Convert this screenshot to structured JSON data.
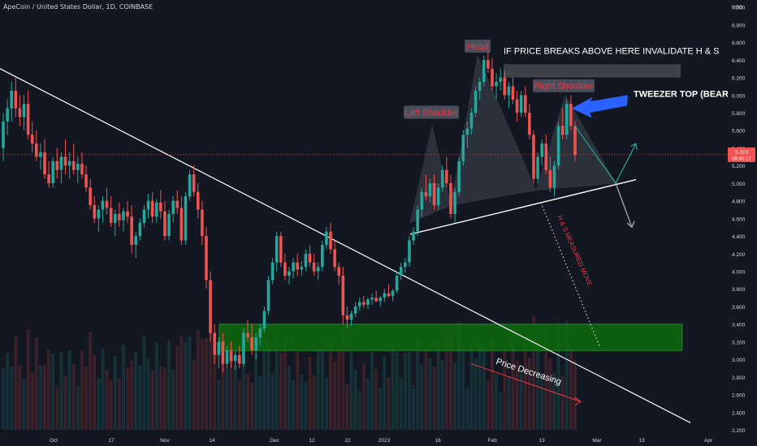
{
  "header": {
    "symbol_line": "ApeCoin / United States Dollar, 1D, COINBASE"
  },
  "colors": {
    "bg": "#131722",
    "up": "#26a69a",
    "down": "#ef5350",
    "text": "#d1d4dc",
    "red_label": "#f23645",
    "green_zone": "#0e6b0e",
    "blue_arrow": "#2962ff",
    "trend": "#ffffff"
  },
  "chart_data": {
    "type": "candlestick",
    "title": "ApeCoin / United States Dollar, 1D, COINBASE",
    "price_axis": {
      "currency": "USD",
      "min": 2.2,
      "max": 7.0,
      "ticks": [
        "7.000",
        "6.800",
        "6.600",
        "6.400",
        "6.200",
        "6.000",
        "5.800",
        "5.600",
        "5.400",
        "5.200",
        "5.000",
        "4.800",
        "4.600",
        "4.400",
        "4.200",
        "4.000",
        "3.800",
        "3.600",
        "3.400",
        "3.200",
        "3.000",
        "2.800",
        "2.600",
        "2.400",
        "2.200"
      ],
      "last_price": "5.323",
      "countdown": "08:40:17"
    },
    "time_axis": {
      "labels": [
        "Oct",
        "17",
        "Nov",
        "14",
        "Dec",
        "12",
        "22",
        "2023",
        "16",
        "Feb",
        "13",
        "Mar",
        "13",
        "Apr"
      ]
    },
    "candles_ohlc": [
      [
        5.4,
        5.8,
        5.25,
        5.7
      ],
      [
        5.7,
        5.95,
        5.55,
        5.85
      ],
      [
        5.85,
        6.15,
        5.7,
        6.05
      ],
      [
        6.05,
        6.2,
        5.75,
        5.85
      ],
      [
        5.85,
        6.0,
        5.65,
        5.75
      ],
      [
        5.75,
        6.0,
        5.6,
        5.9
      ],
      [
        5.9,
        6.05,
        5.5,
        5.55
      ],
      [
        5.55,
        5.7,
        5.35,
        5.45
      ],
      [
        5.45,
        5.6,
        5.25,
        5.3
      ],
      [
        5.3,
        5.45,
        5.15,
        5.35
      ],
      [
        5.35,
        5.5,
        5.05,
        5.1
      ],
      [
        5.1,
        5.25,
        4.95,
        5.0
      ],
      [
        5.0,
        5.3,
        4.95,
        5.25
      ],
      [
        5.25,
        5.4,
        5.05,
        5.15
      ],
      [
        5.15,
        5.35,
        5.0,
        5.3
      ],
      [
        5.3,
        5.5,
        5.1,
        5.2
      ],
      [
        5.2,
        5.35,
        5.05,
        5.25
      ],
      [
        5.25,
        5.45,
        5.1,
        5.15
      ],
      [
        5.15,
        5.3,
        5.0,
        5.22
      ],
      [
        5.22,
        5.35,
        5.05,
        5.1
      ],
      [
        5.1,
        5.2,
        4.9,
        4.95
      ],
      [
        4.95,
        5.05,
        4.7,
        4.75
      ],
      [
        4.75,
        4.85,
        4.55,
        4.6
      ],
      [
        4.6,
        4.75,
        4.45,
        4.7
      ],
      [
        4.7,
        4.85,
        4.55,
        4.8
      ],
      [
        4.8,
        4.95,
        4.65,
        4.72
      ],
      [
        4.72,
        4.85,
        4.5,
        4.55
      ],
      [
        4.55,
        4.7,
        4.4,
        4.65
      ],
      [
        4.65,
        4.78,
        4.5,
        4.58
      ],
      [
        4.58,
        4.72,
        4.45,
        4.68
      ],
      [
        4.68,
        4.8,
        4.55,
        4.62
      ],
      [
        4.62,
        4.75,
        4.2,
        4.3
      ],
      [
        4.3,
        4.45,
        4.15,
        4.4
      ],
      [
        4.4,
        4.6,
        4.35,
        4.55
      ],
      [
        4.55,
        4.75,
        4.5,
        4.7
      ],
      [
        4.7,
        4.88,
        4.6,
        4.8
      ],
      [
        4.8,
        4.9,
        4.55,
        4.62
      ],
      [
        4.62,
        4.82,
        4.55,
        4.78
      ],
      [
        4.78,
        4.92,
        4.6,
        4.68
      ],
      [
        4.68,
        4.8,
        4.35,
        4.4
      ],
      [
        4.4,
        4.7,
        4.35,
        4.65
      ],
      [
        4.65,
        4.85,
        4.55,
        4.8
      ],
      [
        4.8,
        4.92,
        4.65,
        4.72
      ],
      [
        4.72,
        4.85,
        4.3,
        4.35
      ],
      [
        4.35,
        4.9,
        4.3,
        4.85
      ],
      [
        4.85,
        5.15,
        4.8,
        5.1
      ],
      [
        5.1,
        5.2,
        4.85,
        4.9
      ],
      [
        4.9,
        5.0,
        4.6,
        4.7
      ],
      [
        4.7,
        4.8,
        4.3,
        4.4
      ],
      [
        4.4,
        4.5,
        3.8,
        3.9
      ],
      [
        3.9,
        4.0,
        3.2,
        3.3
      ],
      [
        3.3,
        3.4,
        2.95,
        3.05
      ],
      [
        3.05,
        3.25,
        2.9,
        3.2
      ],
      [
        3.2,
        3.3,
        2.85,
        2.95
      ],
      [
        2.95,
        3.15,
        2.9,
        3.1
      ],
      [
        3.1,
        3.2,
        2.9,
        2.98
      ],
      [
        2.98,
        3.1,
        2.88,
        3.05
      ],
      [
        3.05,
        3.15,
        2.9,
        2.95
      ],
      [
        2.95,
        3.35,
        2.92,
        3.3
      ],
      [
        3.3,
        3.45,
        3.2,
        3.25
      ],
      [
        3.25,
        3.4,
        3.05,
        3.1
      ],
      [
        3.1,
        3.3,
        3.0,
        3.25
      ],
      [
        3.25,
        3.4,
        3.15,
        3.35
      ],
      [
        3.35,
        3.6,
        3.3,
        3.55
      ],
      [
        3.55,
        3.95,
        3.5,
        3.9
      ],
      [
        3.9,
        4.15,
        3.85,
        4.1
      ],
      [
        4.1,
        4.45,
        4.0,
        4.4
      ],
      [
        4.4,
        4.45,
        4.05,
        4.1
      ],
      [
        4.1,
        4.2,
        3.9,
        3.95
      ],
      [
        3.95,
        4.05,
        3.85,
        4.0
      ],
      [
        4.0,
        4.15,
        3.92,
        4.1
      ],
      [
        4.1,
        4.2,
        3.95,
        4.02
      ],
      [
        4.02,
        4.12,
        3.95,
        4.05
      ],
      [
        4.05,
        4.25,
        4.0,
        4.2
      ],
      [
        4.2,
        4.3,
        4.05,
        4.1
      ],
      [
        4.1,
        4.2,
        3.95,
        4.0
      ],
      [
        4.0,
        4.1,
        3.9,
        4.05
      ],
      [
        4.05,
        4.35,
        4.0,
        4.3
      ],
      [
        4.3,
        4.5,
        4.25,
        4.45
      ],
      [
        4.45,
        4.55,
        4.2,
        4.25
      ],
      [
        4.25,
        4.35,
        4.0,
        4.05
      ],
      [
        4.05,
        4.1,
        3.85,
        3.95
      ],
      [
        3.95,
        4.05,
        3.4,
        3.5
      ],
      [
        3.5,
        3.6,
        3.35,
        3.45
      ],
      [
        3.45,
        3.55,
        3.38,
        3.52
      ],
      [
        3.52,
        3.65,
        3.48,
        3.6
      ],
      [
        3.6,
        3.7,
        3.55,
        3.65
      ],
      [
        3.65,
        3.72,
        3.58,
        3.62
      ],
      [
        3.62,
        3.7,
        3.57,
        3.68
      ],
      [
        3.68,
        3.75,
        3.62,
        3.7
      ],
      [
        3.7,
        3.78,
        3.65,
        3.66
      ],
      [
        3.66,
        3.72,
        3.6,
        3.7
      ],
      [
        3.7,
        3.8,
        3.65,
        3.75
      ],
      [
        3.75,
        3.85,
        3.7,
        3.72
      ],
      [
        3.72,
        3.8,
        3.66,
        3.78
      ],
      [
        3.78,
        4.0,
        3.75,
        3.95
      ],
      [
        3.95,
        4.1,
        3.9,
        4.05
      ],
      [
        4.05,
        4.15,
        3.98,
        4.1
      ],
      [
        4.1,
        4.4,
        4.05,
        4.35
      ],
      [
        4.35,
        4.5,
        4.3,
        4.45
      ],
      [
        4.45,
        4.75,
        4.4,
        4.7
      ],
      [
        4.7,
        4.95,
        4.62,
        4.9
      ],
      [
        4.9,
        5.1,
        4.8,
        4.85
      ],
      [
        4.85,
        5.05,
        4.78,
        5.0
      ],
      [
        5.0,
        5.1,
        4.7,
        4.75
      ],
      [
        4.75,
        5.0,
        4.7,
        4.95
      ],
      [
        4.95,
        5.2,
        4.9,
        5.15
      ],
      [
        5.15,
        5.3,
        4.95,
        5.0
      ],
      [
        5.0,
        5.1,
        4.6,
        4.65
      ],
      [
        4.65,
        4.95,
        4.55,
        4.9
      ],
      [
        4.9,
        5.3,
        4.85,
        5.25
      ],
      [
        5.25,
        5.6,
        5.2,
        5.55
      ],
      [
        5.55,
        5.7,
        5.4,
        5.62
      ],
      [
        5.62,
        5.85,
        5.55,
        5.8
      ],
      [
        5.8,
        6.1,
        5.75,
        6.05
      ],
      [
        6.05,
        6.2,
        5.95,
        6.15
      ],
      [
        6.15,
        6.45,
        6.1,
        6.4
      ],
      [
        6.4,
        6.5,
        6.25,
        6.3
      ],
      [
        6.3,
        6.42,
        6.05,
        6.1
      ],
      [
        6.1,
        6.25,
        5.95,
        6.15
      ],
      [
        6.15,
        6.3,
        6.05,
        6.2
      ],
      [
        6.2,
        6.28,
        5.95,
        6.0
      ],
      [
        6.0,
        6.15,
        5.85,
        6.1
      ],
      [
        6.1,
        6.2,
        5.9,
        5.95
      ],
      [
        5.95,
        6.05,
        5.7,
        5.8
      ],
      [
        5.8,
        6.05,
        5.75,
        6.0
      ],
      [
        6.0,
        6.1,
        5.75,
        5.8
      ],
      [
        5.8,
        5.9,
        5.5,
        5.55
      ],
      [
        5.55,
        5.6,
        5.0,
        5.05
      ],
      [
        5.05,
        5.35,
        5.0,
        5.3
      ],
      [
        5.3,
        5.5,
        5.2,
        5.45
      ],
      [
        5.45,
        5.55,
        5.1,
        5.15
      ],
      [
        5.15,
        5.3,
        4.9,
        4.95
      ],
      [
        4.95,
        5.25,
        4.85,
        5.2
      ],
      [
        5.2,
        5.7,
        5.15,
        5.65
      ],
      [
        5.65,
        5.85,
        5.5,
        5.55
      ],
      [
        5.55,
        5.95,
        5.5,
        5.9
      ],
      [
        5.9,
        6.0,
        5.6,
        5.65
      ],
      [
        5.65,
        5.7,
        5.25,
        5.32
      ]
    ],
    "patterns": {
      "head_shoulders": {
        "left": "Left Shoulder",
        "head": "Head",
        "right": "Right Shoulder"
      },
      "annotations": [
        "IF PRICE BREAKS ABOVE HERE INVALIDATE H & S",
        "TWEEZER TOP (BEARISH)",
        "H & S MEASURED MOVE",
        "Price Decreasing"
      ]
    },
    "demand_zone": [
      3.1,
      3.4
    ],
    "grid": false,
    "legend": "none"
  }
}
